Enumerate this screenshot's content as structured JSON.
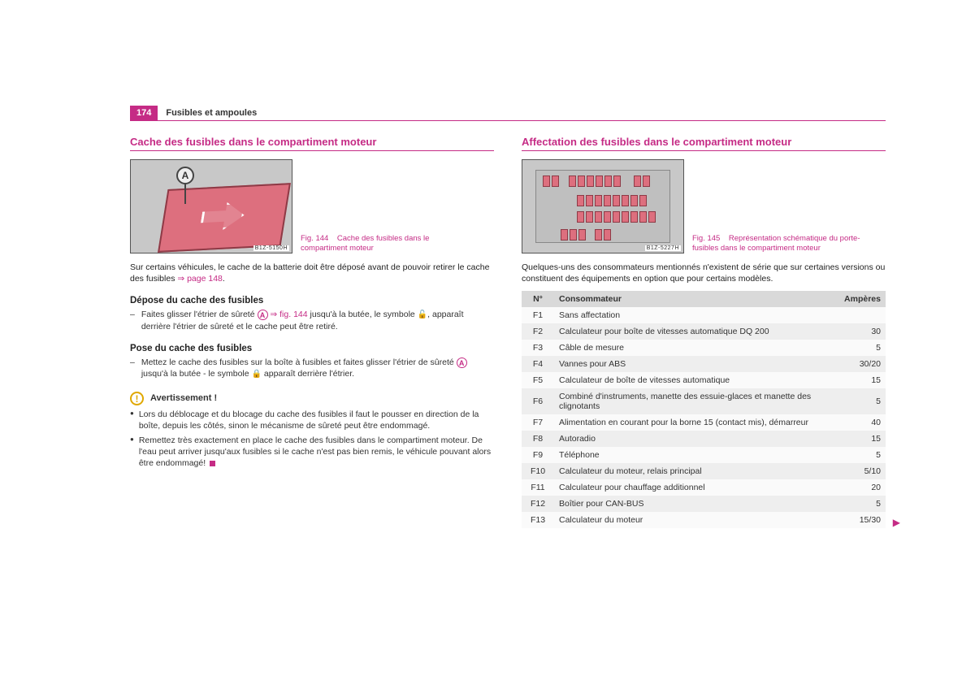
{
  "page": {
    "number": "174",
    "chapter": "Fusibles et ampoules"
  },
  "left": {
    "heading": "Cache des fusibles dans le compartiment moteur",
    "fig": {
      "code": "B1Z-5150H",
      "callout": "A",
      "num": "Fig. 144",
      "caption": "Cache des fusibles dans le compartiment moteur"
    },
    "para_intro_a": "Sur certains véhicules, le cache de la batterie doit être déposé avant de pouvoir retirer le cache des fusibles ",
    "para_intro_link": "⇒ page 148",
    "para_intro_b": ".",
    "sub1": "Dépose du cache des fusibles",
    "dash1_pre": "Faites glisser l'étrier de sûreté ",
    "dash1_A": "A",
    "dash1_arrow": " ⇒ ",
    "dash1_figref": "fig. 144",
    "dash1_mid": " jusqu'à la butée, le symbole ",
    "dash1_lock1": "🔓",
    "dash1_post": ", apparaît derrière l'étrier de sûreté et le cache peut être retiré.",
    "sub2": "Pose du cache des fusibles",
    "dash2_pre": "Mettez le cache des fusibles sur la boîte à fusibles et faites glisser l'étrier de sûreté ",
    "dash2_A": "A",
    "dash2_mid": " jusqu'à la butée - le symbole ",
    "dash2_lock": "🔒",
    "dash2_post": " apparaît derrière l'étrier.",
    "warn_title": "Avertissement !",
    "warn_b1": "Lors du déblocage et du blocage du cache des fusibles il faut le pousser en direction de la boîte, depuis les côtés, sinon le mécanisme de sûreté peut être endommagé.",
    "warn_b2": "Remettez très exactement en place le cache des fusibles dans le compartiment moteur. De l'eau peut arriver jusqu'aux fusibles si le cache n'est pas bien remis, le véhicule pouvant alors être endommagé!"
  },
  "right": {
    "heading": "Affectation des fusibles dans le compartiment moteur",
    "fig": {
      "code": "B1Z-5227H",
      "num": "Fig. 145",
      "caption": "Représentation schématique du porte-fusibles dans le compartiment moteur"
    },
    "para_intro": "Quelques-uns des consommateurs mentionnés n'existent de série que sur certaines versions ou constituent des équipements en option que pour certains modèles.",
    "table": {
      "head": {
        "n": "N°",
        "c": "Consommateur",
        "a": "Ampères"
      },
      "rows": [
        {
          "n": "F1",
          "c": "Sans affectation",
          "a": ""
        },
        {
          "n": "F2",
          "c": "Calculateur pour boîte de vitesses automatique DQ 200",
          "a": "30"
        },
        {
          "n": "F3",
          "c": "Câble de mesure",
          "a": "5"
        },
        {
          "n": "F4",
          "c": "Vannes pour ABS",
          "a": "30/20"
        },
        {
          "n": "F5",
          "c": "Calculateur de boîte de vitesses automatique",
          "a": "15"
        },
        {
          "n": "F6",
          "c": "Combiné d'instruments, manette des essuie-glaces et manette des clignotants",
          "a": "5"
        },
        {
          "n": "F7",
          "c": "Alimentation en courant pour la borne 15 (contact mis), démarreur",
          "a": "40"
        },
        {
          "n": "F8",
          "c": "Autoradio",
          "a": "15"
        },
        {
          "n": "F9",
          "c": "Téléphone",
          "a": "5"
        },
        {
          "n": "F10",
          "c": "Calculateur du moteur, relais principal",
          "a": "5/10"
        },
        {
          "n": "F11",
          "c": "Calculateur pour chauffage additionnel",
          "a": "20"
        },
        {
          "n": "F12",
          "c": "Boîtier pour CAN-BUS",
          "a": "5"
        },
        {
          "n": "F13",
          "c": "Calculateur du moteur",
          "a": "15/30"
        }
      ],
      "continue": "▶"
    }
  }
}
